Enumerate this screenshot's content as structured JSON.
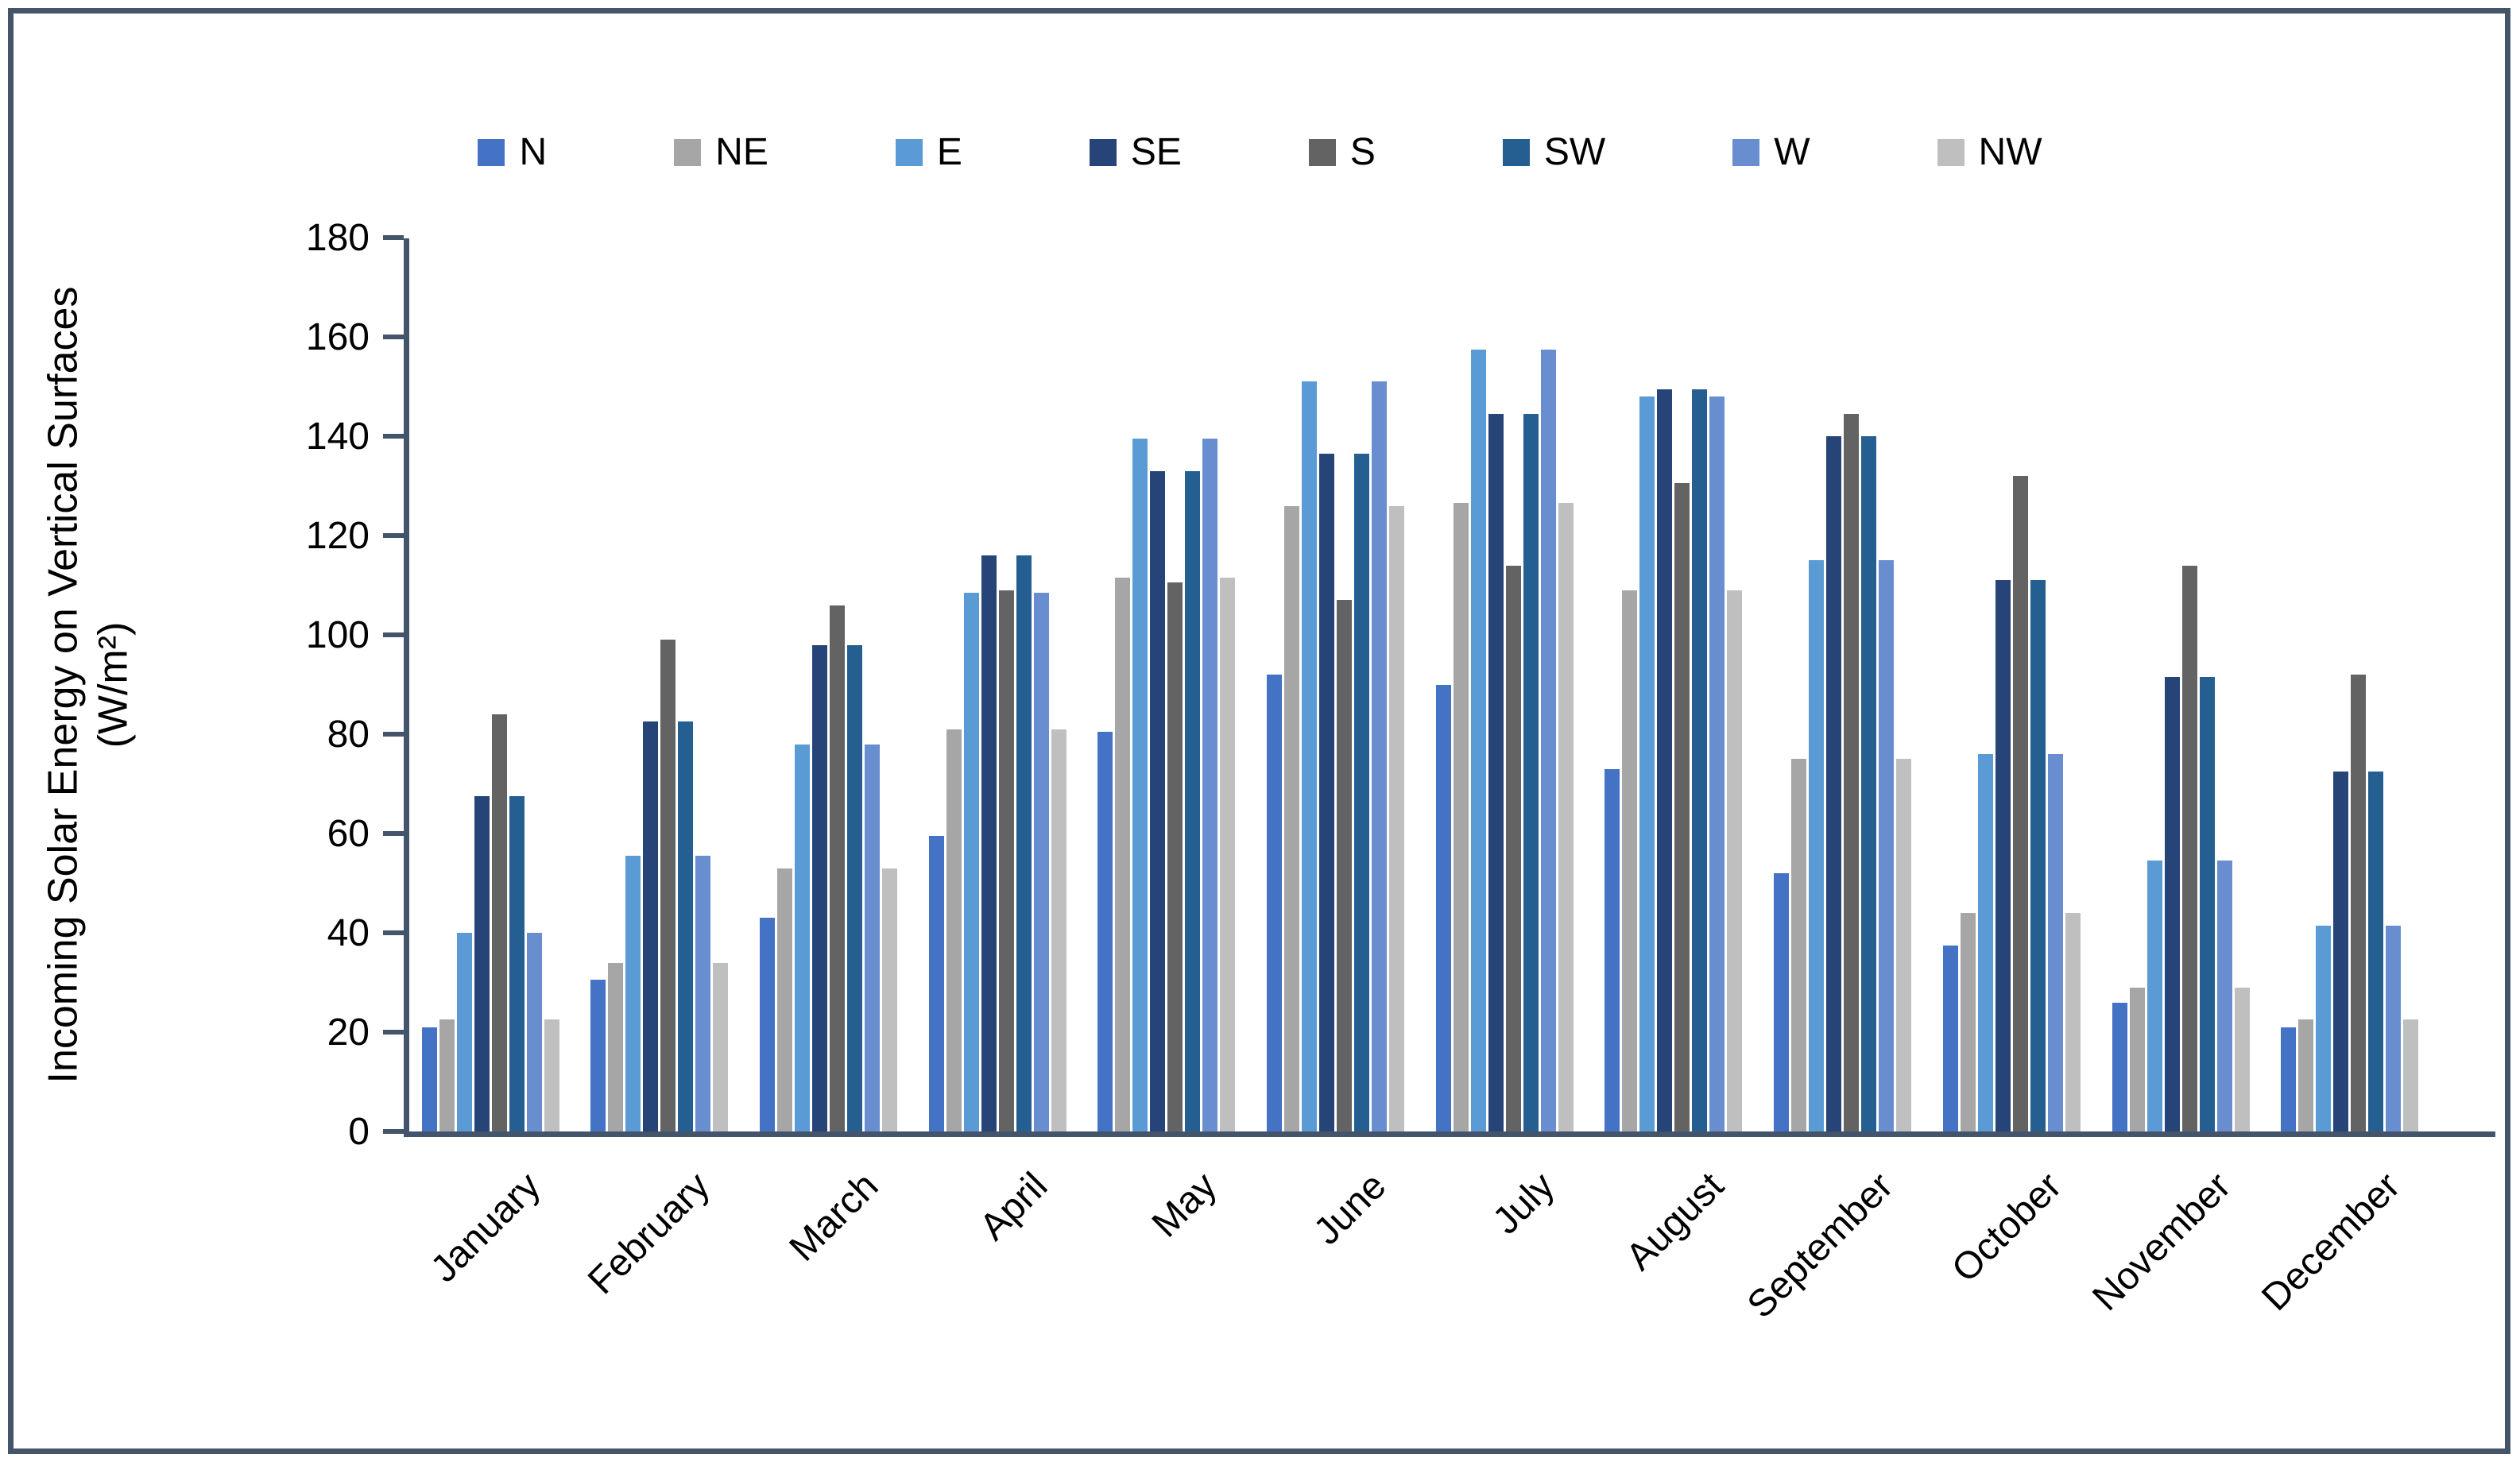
{
  "frame": {
    "background": "#FFFFFF",
    "border_color": "#44546A",
    "axis_color": "#44546A",
    "text_color": "#000000"
  },
  "chart_data": {
    "type": "bar",
    "title": "",
    "ylabel_line1": "Incoming Solar Energy on Vertical Surfaces",
    "ylabel_line2": "(W/m²)",
    "xlabel": "",
    "ylim": [
      0,
      180
    ],
    "ytick_step": 20,
    "yticks": [
      0,
      20,
      40,
      60,
      80,
      100,
      120,
      140,
      160,
      180
    ],
    "grid": false,
    "legend_position": "top",
    "categories": [
      "January",
      "February",
      "March",
      "April",
      "May",
      "June",
      "July",
      "August",
      "September",
      "October",
      "November",
      "December"
    ],
    "series": [
      {
        "name": "N",
        "color": "#4472C4",
        "values": [
          21,
          30.5,
          43,
          59.5,
          80.5,
          92,
          90,
          73,
          52,
          37.5,
          26,
          21
        ]
      },
      {
        "name": "NE",
        "color": "#A6A6A6",
        "values": [
          22.5,
          34,
          53,
          81,
          111.5,
          126,
          126.5,
          109,
          75,
          44,
          29,
          22.5
        ]
      },
      {
        "name": "E",
        "color": "#5B9BD5",
        "values": [
          40,
          55.5,
          78,
          108.5,
          139.5,
          151,
          157.5,
          148,
          115,
          76,
          54.5,
          41.5
        ]
      },
      {
        "name": "SE",
        "color": "#264478",
        "values": [
          67.5,
          82.5,
          98,
          116,
          133,
          136.5,
          144.5,
          149.5,
          140,
          111,
          91.5,
          72.5
        ]
      },
      {
        "name": "S",
        "color": "#636363",
        "values": [
          84,
          99,
          106,
          109,
          110.5,
          107,
          114,
          130.5,
          144.5,
          132,
          114,
          92
        ]
      },
      {
        "name": "SW",
        "color": "#255E91",
        "values": [
          67.5,
          82.5,
          98,
          116,
          133,
          136.5,
          144.5,
          149.5,
          140,
          111,
          91.5,
          72.5
        ]
      },
      {
        "name": "W",
        "color": "#698ED0",
        "values": [
          40,
          55.5,
          78,
          108.5,
          139.5,
          151,
          157.5,
          148,
          115,
          76,
          54.5,
          41.5
        ]
      },
      {
        "name": "NW",
        "color": "#BFBFBF",
        "values": [
          22.5,
          34,
          53,
          81,
          111.5,
          126,
          126.5,
          109,
          75,
          44,
          29,
          22.5
        ]
      }
    ]
  }
}
